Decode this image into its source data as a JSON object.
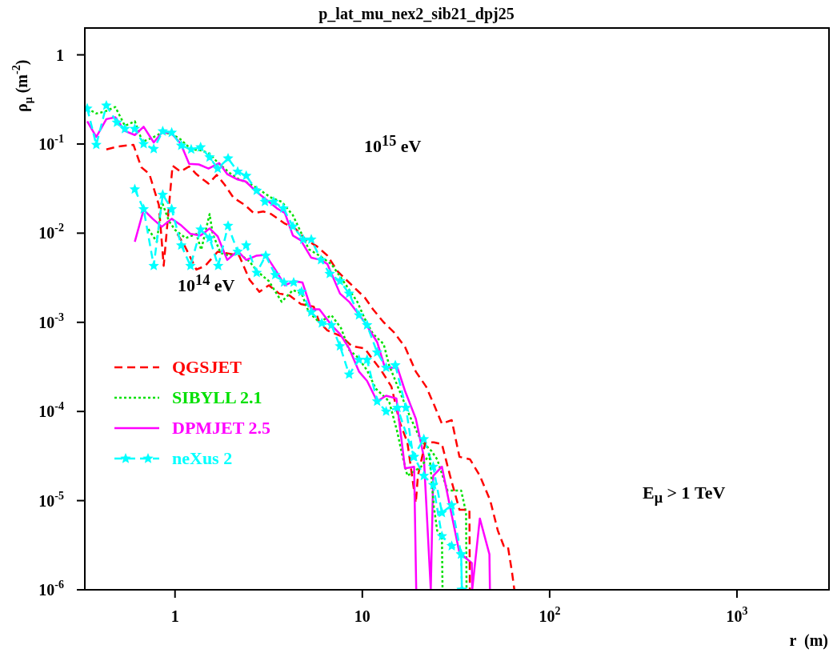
{
  "chart_data": {
    "type": "line",
    "title": "p_lat_mu_nex2_sib21_dpj25",
    "xlabel": "r  (m)",
    "ylabel": "ρ$_{μ}$ (m$^{-2}$)",
    "log": "xy",
    "xlim": [
      0.33,
      3100
    ],
    "ylim": [
      1e-06,
      2
    ],
    "xticks": [
      1,
      10,
      {
        "value": 100,
        "label": "10$^{2}$"
      },
      {
        "value": 1000,
        "label": "10$^{3}$"
      }
    ],
    "yticks": [
      {
        "value": 1e-06,
        "label": "10$^{-6}$"
      },
      {
        "value": 1e-05,
        "label": "10$^{-5}$"
      },
      {
        "value": 0.0001,
        "label": "10$^{-4}$"
      },
      {
        "value": 0.001,
        "label": "10$^{-3}$"
      },
      {
        "value": 0.01,
        "label": "10$^{-2}$"
      },
      {
        "value": 0.1,
        "label": "10$^{-1}$"
      },
      1
    ],
    "legend": "left",
    "annotations": [
      "10$^{15}$ eV",
      "10$^{14}$ eV",
      "E$_{μ}$ > 1 TeV"
    ],
    "series": [
      {
        "name": "QGSJET",
        "color": "#ff0000",
        "line_style": "dashed",
        "x": [
          0.43,
          0.5,
          0.6,
          0.66,
          0.73,
          0.82,
          0.87,
          0.97,
          1.07,
          1.19,
          1.3,
          1.41,
          1.51,
          1.67,
          1.84,
          2.05,
          2.36,
          2.63,
          2.96,
          3.26,
          3.86,
          4.39,
          4.98,
          5.73,
          6.51,
          7.4,
          8.8,
          10.3,
          11.4,
          13.0,
          14.7,
          16.9,
          19.3,
          21.9,
          24.1,
          26.6,
          30,
          33,
          37.6,
          42.4,
          48.2,
          52.9,
          56.9,
          59.8,
          62.9,
          64.8
        ],
        "values": [
          0.087,
          0.094,
          0.098,
          0.055,
          0.046,
          0.0207,
          0.0043,
          0.057,
          0.049,
          0.056,
          0.046,
          0.04,
          0.036,
          0.045,
          0.035,
          0.025,
          0.0207,
          0.0168,
          0.0175,
          0.0164,
          0.0128,
          0.0112,
          0.0085,
          0.0071,
          0.0056,
          0.0037,
          0.0026,
          0.0019,
          0.0014,
          0.001,
          0.00078,
          0.00053,
          0.00028,
          0.00019,
          0.00012,
          7.3e-05,
          8e-05,
          3.1e-05,
          2.9e-05,
          1.9e-05,
          1e-05,
          4.6e-06,
          3.1e-06,
          3.1e-06,
          1.6e-06,
          1e-06
        ]
      },
      {
        "name": "SIBYLL 2.1",
        "color": "#00e000",
        "line_style": "dotted",
        "x": [
          0.34,
          0.38,
          0.42,
          0.48,
          0.54,
          0.61,
          0.67,
          0.76,
          0.85,
          0.95,
          1.07,
          1.22,
          1.37,
          1.53,
          1.69,
          1.94,
          2.2,
          2.5,
          2.87,
          3.26,
          3.71,
          4.26,
          5.18,
          5.9,
          6.84,
          8.2,
          9.4,
          10.3,
          11.4,
          13.0,
          13.9,
          15.8,
          17.9,
          20.6,
          23.4,
          25.1,
          28.5,
          33.7,
          35.8,
          36
        ],
        "values": [
          0.25,
          0.22,
          0.23,
          0.26,
          0.16,
          0.18,
          0.106,
          0.118,
          0.134,
          0.131,
          0.113,
          0.087,
          0.085,
          0.078,
          0.062,
          0.048,
          0.04,
          0.036,
          0.03,
          0.025,
          0.0225,
          0.0159,
          0.0066,
          0.0056,
          0.0045,
          0.0026,
          0.0017,
          0.0011,
          0.00074,
          0.00057,
          0.00033,
          0.00017,
          8.9e-05,
          4.7e-05,
          3.6e-05,
          2.9e-05,
          1.3e-05,
          1.3e-05,
          7.3e-06,
          1e-06
        ]
      },
      {
        "name": "DPMJET 2.5",
        "color": "#ff00ff",
        "line_style": "solid",
        "x": [
          0.34,
          0.38,
          0.43,
          0.48,
          0.54,
          0.61,
          0.68,
          0.77,
          0.85,
          0.95,
          1.07,
          1.19,
          1.34,
          1.51,
          1.72,
          1.9,
          2.16,
          2.38,
          2.73,
          3.05,
          3.5,
          3.86,
          4.26,
          4.7,
          5.34,
          6.02,
          6.51,
          7.6,
          8.5,
          10.3,
          12.0,
          13.2,
          15.4,
          16.9,
          19.3,
          21.3,
          23.2,
          23.9,
          26.6,
          29.4,
          33,
          38.4,
          38.6,
          42.4,
          47.7,
          48
        ],
        "values": [
          0.18,
          0.12,
          0.19,
          0.2,
          0.14,
          0.126,
          0.156,
          0.104,
          0.134,
          0.134,
          0.102,
          0.06,
          0.059,
          0.053,
          0.061,
          0.046,
          0.04,
          0.038,
          0.029,
          0.024,
          0.019,
          0.0168,
          0.0094,
          0.0083,
          0.0053,
          0.005,
          0.0045,
          0.0021,
          0.0017,
          0.001,
          0.0006,
          0.00031,
          0.00031,
          0.00017,
          8.3e-05,
          3.1e-05,
          1e-06,
          1.9e-05,
          2.4e-05,
          8.5e-06,
          2.6e-06,
          2e-06,
          1e-06,
          6.3e-06,
          2.5e-06,
          1e-06
        ]
      },
      {
        "name": "neXus 2",
        "color": "#00ffff",
        "line_style": "dashed",
        "marker": "star",
        "x": [
          0.34,
          0.38,
          0.43,
          0.49,
          0.54,
          0.61,
          0.68,
          0.77,
          0.86,
          0.96,
          1.08,
          1.22,
          1.37,
          1.53,
          1.69,
          1.92,
          2.16,
          2.4,
          2.73,
          3.02,
          3.36,
          3.79,
          4.26,
          4.84,
          5.34,
          6.02,
          6.7,
          7.6,
          8.5,
          9.6,
          10.6,
          12.0,
          13.4,
          15.0,
          17.1,
          18.7,
          21.3,
          23.9,
          26.6,
          30,
          33.7,
          34
        ],
        "values": [
          0.25,
          0.098,
          0.27,
          0.174,
          0.148,
          0.148,
          0.1,
          0.088,
          0.139,
          0.134,
          0.096,
          0.087,
          0.092,
          0.071,
          0.053,
          0.069,
          0.049,
          0.044,
          0.03,
          0.0225,
          0.0225,
          0.019,
          0.0119,
          0.0085,
          0.0085,
          0.005,
          0.0035,
          0.0029,
          0.0021,
          0.0012,
          0.00093,
          0.00046,
          0.00031,
          0.00033,
          0.00011,
          3.1e-05,
          4.9e-05,
          2.4e-05,
          7.3e-06,
          8.9e-06,
          2.5e-06,
          1e-06
        ]
      },
      {
        "color": "#ff0000",
        "line_style": "dashed",
        "x": [
          1.03,
          1.13,
          1.3,
          1.45,
          1.69,
          1.94,
          2.2,
          2.5,
          2.82,
          3.17,
          3.6,
          4.09,
          4.7,
          5.5,
          5.9,
          6.51,
          7.7,
          8.8,
          10.3,
          11.4,
          12.6,
          14.3,
          15.8,
          17.4,
          19.3,
          19.8,
          21.7,
          24.1,
          26.6,
          29.4,
          33,
          37.3,
          37.5
        ],
        "values": [
          0.0098,
          0.0071,
          0.0039,
          0.0043,
          0.0062,
          0.0059,
          0.0056,
          0.003,
          0.0022,
          0.0026,
          0.0021,
          0.002,
          0.0016,
          0.0015,
          0.001,
          0.00081,
          0.0007,
          0.00054,
          0.00051,
          0.00038,
          0.00029,
          0.00019,
          7.7e-05,
          4.5e-05,
          9.4e-06,
          1.9e-05,
          4.5e-05,
          4.5e-05,
          4.3e-05,
          1.9e-05,
          7.9e-06,
          7.9e-06,
          1e-06
        ]
      },
      {
        "color": "#00e000",
        "line_style": "dotted",
        "x": [
          0.72,
          0.8,
          0.85,
          0.93,
          1.0,
          1.14,
          1.3,
          1.38,
          1.53,
          1.59,
          1.75,
          1.94,
          2.2,
          2.5,
          2.76,
          3.17,
          3.71,
          4.26,
          4.74,
          5.18,
          5.9,
          6.84,
          7.7,
          8.5,
          9.4,
          10.6,
          11.8,
          13.9,
          15.4,
          16.3,
          17.4,
          20.6,
          22.8,
          24.1,
          25.1,
          26.6,
          26.8
        ],
        "values": [
          0.0111,
          0.008,
          0.0225,
          0.0136,
          0.0109,
          0.0088,
          0.0098,
          0.0065,
          0.0164,
          0.0098,
          0.006,
          0.0056,
          0.0059,
          0.0048,
          0.0037,
          0.0029,
          0.0017,
          0.0023,
          0.0021,
          0.0013,
          0.001,
          0.0012,
          0.00086,
          0.00049,
          0.00041,
          0.00029,
          0.00018,
          0.00013,
          5.8e-05,
          3.3e-05,
          1.9e-05,
          2.4e-05,
          3.3e-05,
          8.5e-06,
          4.6e-06,
          4e-06,
          1e-06
        ]
      },
      {
        "color": "#ff00ff",
        "line_style": "solid",
        "x": [
          0.61,
          0.68,
          0.76,
          0.85,
          0.96,
          1.07,
          1.21,
          1.37,
          1.53,
          1.69,
          1.9,
          2.16,
          2.4,
          2.73,
          3.05,
          3.43,
          3.86,
          4.3,
          4.79,
          5.34,
          5.9,
          6.84,
          7.6,
          8.5,
          9.6,
          10.6,
          12.0,
          13.4,
          15.2,
          16.9,
          18.9,
          19.4
        ],
        "values": [
          0.008,
          0.0183,
          0.0145,
          0.0118,
          0.0145,
          0.0124,
          0.0098,
          0.0094,
          0.0113,
          0.0092,
          0.005,
          0.0063,
          0.005,
          0.0056,
          0.0057,
          0.0039,
          0.0026,
          0.0029,
          0.0028,
          0.0014,
          0.0014,
          0.00093,
          0.00074,
          0.00051,
          0.00028,
          0.00022,
          0.00013,
          0.00015,
          0.00014,
          2.3e-05,
          2.4e-05,
          1e-06
        ]
      },
      {
        "color": "#00ffff",
        "line_style": "dashed",
        "marker": "star",
        "x": [
          0.61,
          0.68,
          0.77,
          0.86,
          0.96,
          1.08,
          1.21,
          1.37,
          1.53,
          1.7,
          1.92,
          2.16,
          2.4,
          2.73,
          3.05,
          3.43,
          3.82,
          4.3,
          4.74,
          5.34,
          6.08,
          6.84,
          7.6,
          8.5,
          9.6,
          10.6,
          12.0,
          13.4,
          15.4,
          18.9,
          21.3,
          23.9,
          26.6,
          30,
          33.7,
          34
        ],
        "values": [
          0.031,
          0.0186,
          0.0043,
          0.027,
          0.0186,
          0.0073,
          0.0043,
          0.011,
          0.0088,
          0.0043,
          0.0121,
          0.0062,
          0.0073,
          0.0036,
          0.0056,
          0.0034,
          0.0028,
          0.0028,
          0.0022,
          0.0013,
          0.00098,
          0.00093,
          0.00054,
          0.00026,
          0.00038,
          0.00038,
          0.00013,
          0.0001,
          0.00011,
          3.1e-05,
          1.9e-05,
          1.5e-05,
          4e-06,
          3.1e-06,
          2.5e-06,
          1e-06
        ]
      }
    ]
  }
}
